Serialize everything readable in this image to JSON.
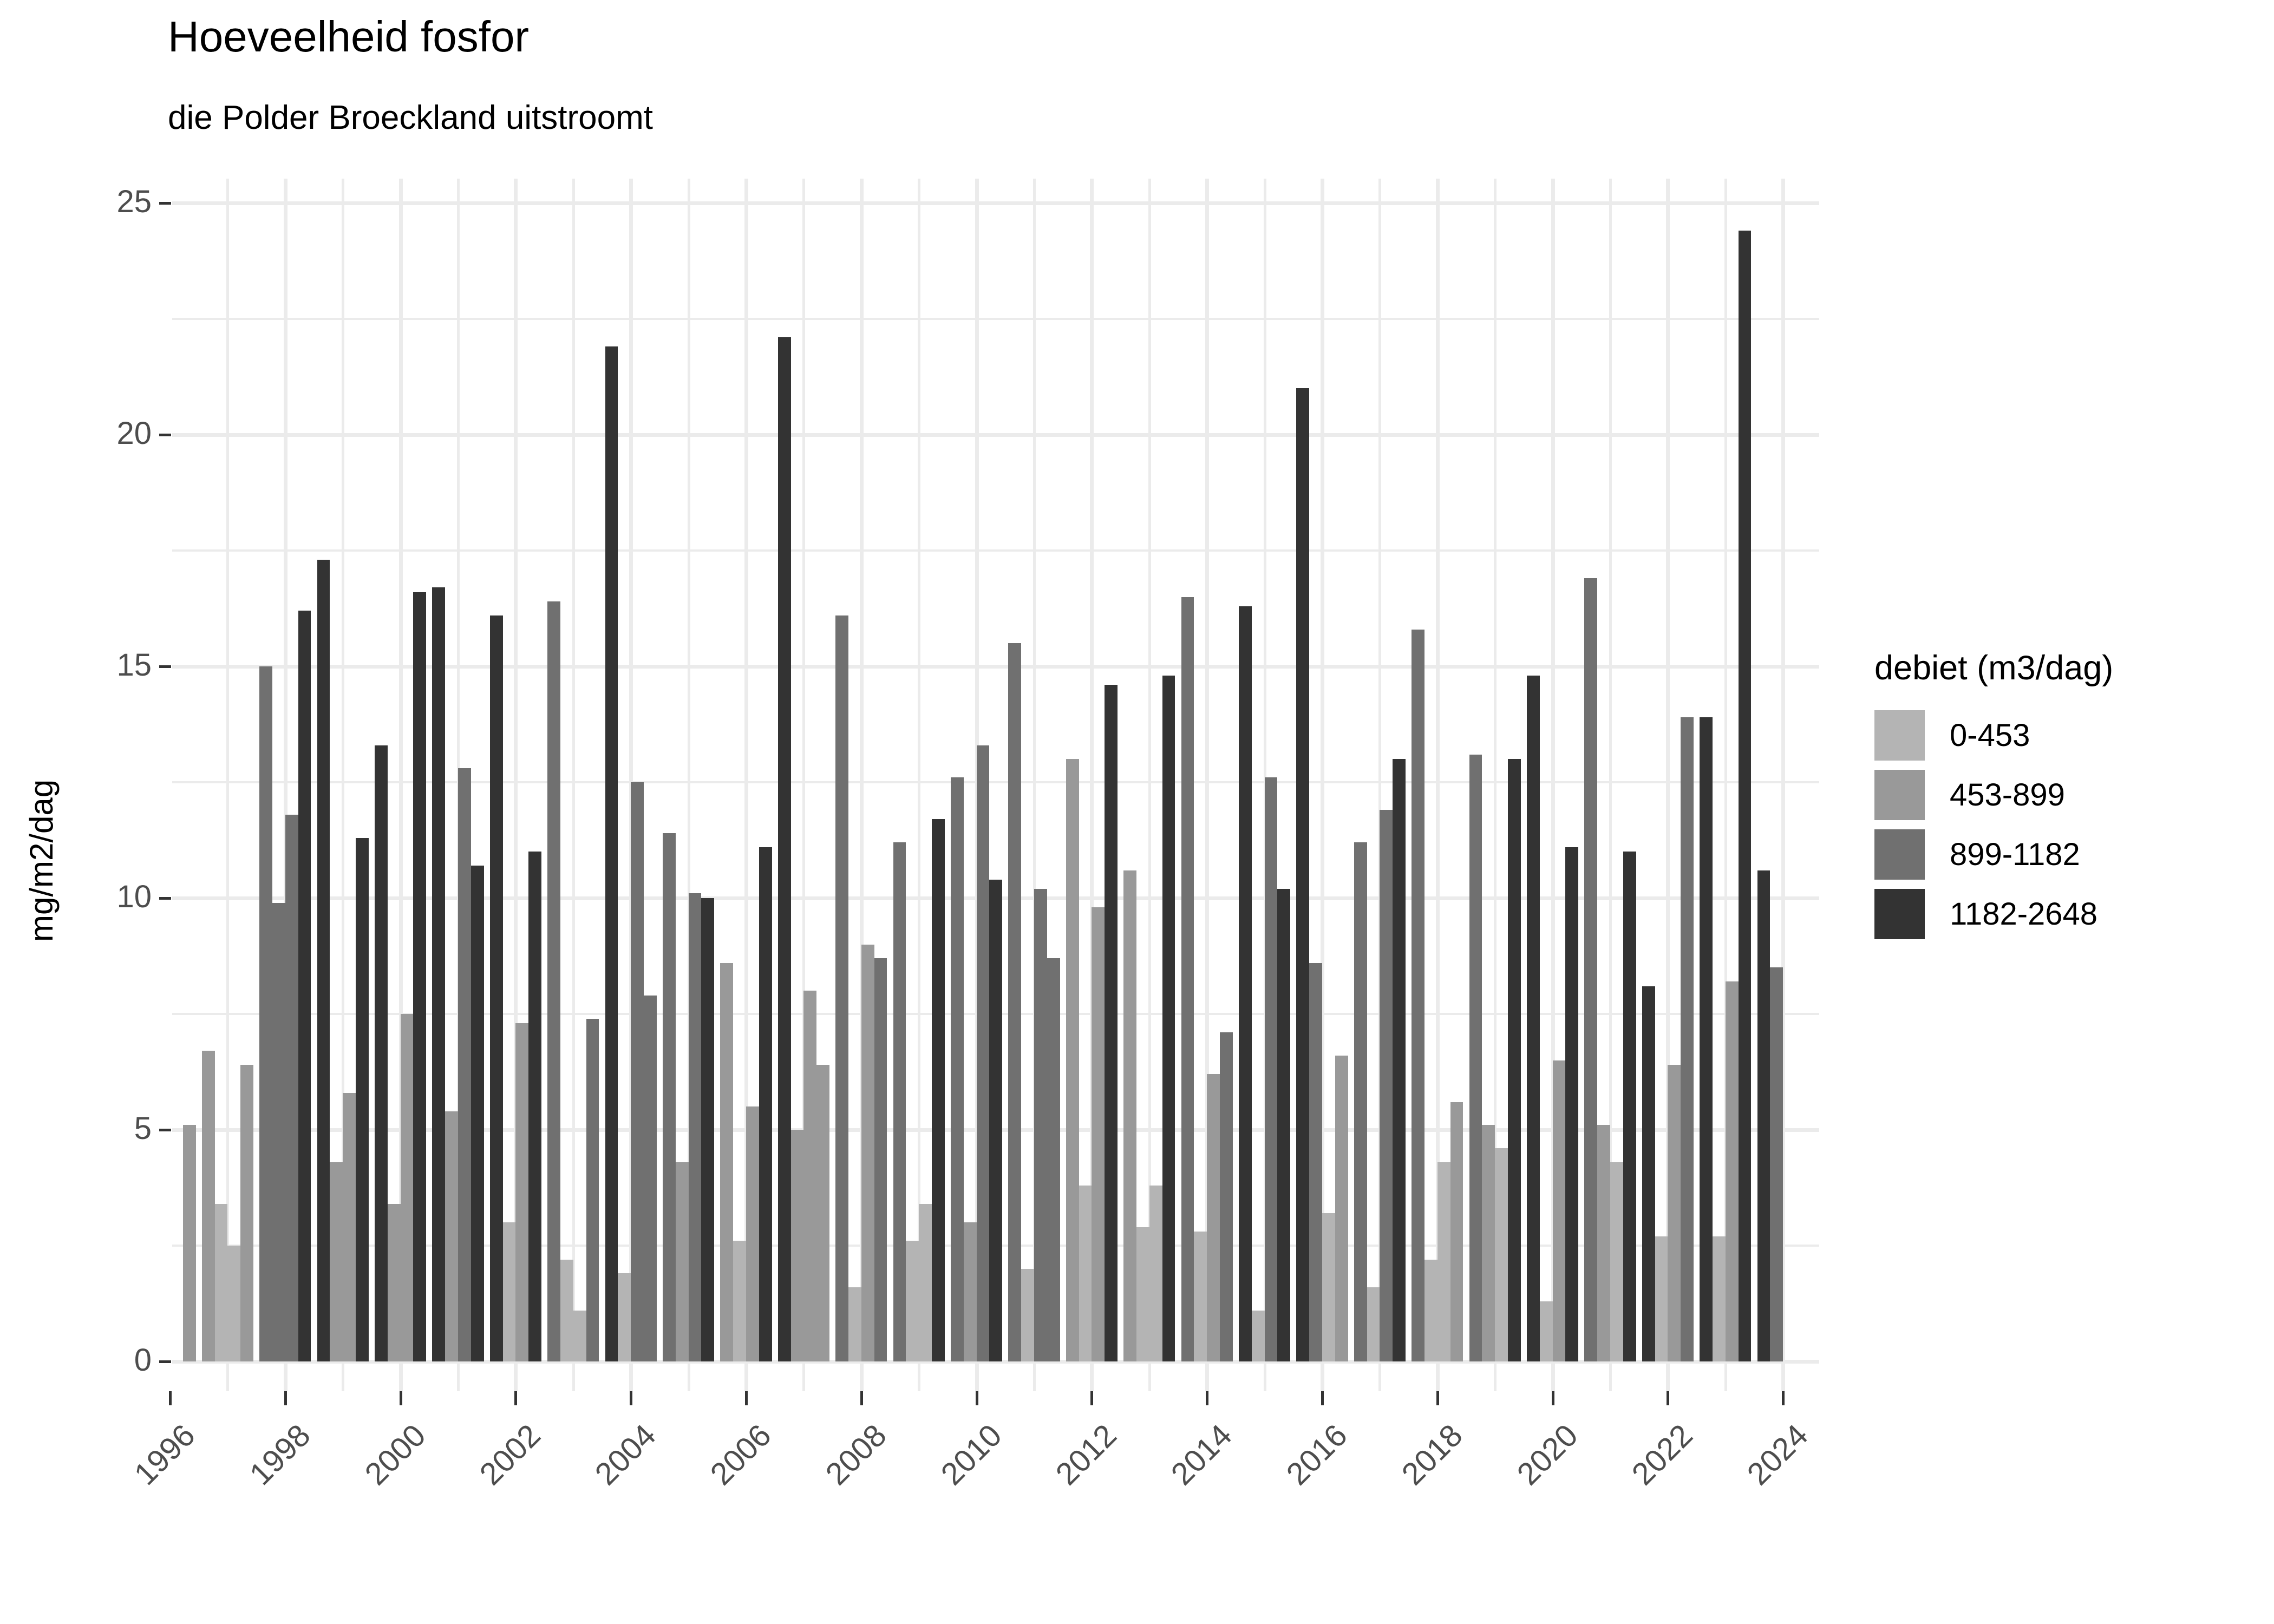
{
  "chart_data": {
    "type": "bar",
    "title": "Hoeveelheid fosfor",
    "subtitle": "die Polder Broeckland uitstroomt",
    "ylabel": "mg/m2/dag",
    "xlabel": "",
    "ylim": [
      0,
      25.5
    ],
    "grid": "on",
    "y_ticks": [
      0,
      5,
      10,
      15,
      20,
      25
    ],
    "x_ticks": [
      1996,
      1998,
      2000,
      2002,
      2004,
      2006,
      2008,
      2010,
      2012,
      2014,
      2016,
      2018,
      2020,
      2022,
      2024
    ],
    "legend": {
      "title": "debiet (m3/dag)",
      "position": "right",
      "items": [
        {
          "label": "0-453",
          "color": "#B4B4B4"
        },
        {
          "label": "453-899",
          "color": "#999999"
        },
        {
          "label": "899-1182",
          "color": "#707070"
        },
        {
          "label": "1182-2648",
          "color": "#333333"
        }
      ]
    },
    "groups": [
      {
        "year": 1996,
        "bars": [
          {
            "q": 4,
            "v": 5.1,
            "c": 1
          }
        ]
      },
      {
        "year": 1997,
        "bars": [
          {
            "q": 1,
            "v": 6.7,
            "c": 1
          },
          {
            "q": 2,
            "v": 3.4,
            "c": 0
          },
          {
            "q": 3,
            "v": 2.5,
            "c": 0
          },
          {
            "q": 4,
            "v": 6.4,
            "c": 1
          }
        ]
      },
      {
        "year": 1998,
        "bars": [
          {
            "q": 1,
            "v": 15.0,
            "c": 2
          },
          {
            "q": 2,
            "v": 9.9,
            "c": 2
          },
          {
            "q": 3,
            "v": 11.8,
            "c": 2
          },
          {
            "q": 4,
            "v": 16.2,
            "c": 3
          }
        ]
      },
      {
        "year": 1999,
        "bars": [
          {
            "q": 1,
            "v": 17.3,
            "c": 3
          },
          {
            "q": 2,
            "v": 4.3,
            "c": 1
          },
          {
            "q": 3,
            "v": 5.8,
            "c": 1
          },
          {
            "q": 4,
            "v": 11.3,
            "c": 3
          }
        ]
      },
      {
        "year": 2000,
        "bars": [
          {
            "q": 1,
            "v": 13.3,
            "c": 3
          },
          {
            "q": 2,
            "v": 3.4,
            "c": 1
          },
          {
            "q": 3,
            "v": 7.5,
            "c": 1
          },
          {
            "q": 4,
            "v": 16.6,
            "c": 3
          }
        ]
      },
      {
        "year": 2001,
        "bars": [
          {
            "q": 1,
            "v": 16.7,
            "c": 3
          },
          {
            "q": 2,
            "v": 5.4,
            "c": 1
          },
          {
            "q": 3,
            "v": 12.8,
            "c": 2
          },
          {
            "q": 4,
            "v": 10.7,
            "c": 3
          }
        ]
      },
      {
        "year": 2002,
        "bars": [
          {
            "q": 1,
            "v": 16.1,
            "c": 3
          },
          {
            "q": 2,
            "v": 3.0,
            "c": 0
          },
          {
            "q": 3,
            "v": 7.3,
            "c": 1
          },
          {
            "q": 4,
            "v": 11.0,
            "c": 3
          }
        ]
      },
      {
        "year": 2003,
        "bars": [
          {
            "q": 1,
            "v": 16.4,
            "c": 2
          },
          {
            "q": 2,
            "v": 2.2,
            "c": 0
          },
          {
            "q": 3,
            "v": 1.1,
            "c": 0
          },
          {
            "q": 4,
            "v": 7.4,
            "c": 2
          }
        ]
      },
      {
        "year": 2004,
        "bars": [
          {
            "q": 1,
            "v": 21.9,
            "c": 3
          },
          {
            "q": 2,
            "v": 1.9,
            "c": 0
          },
          {
            "q": 3,
            "v": 12.5,
            "c": 2
          },
          {
            "q": 4,
            "v": 7.9,
            "c": 2
          }
        ]
      },
      {
        "year": 2005,
        "bars": [
          {
            "q": 1,
            "v": 11.4,
            "c": 2
          },
          {
            "q": 2,
            "v": 4.3,
            "c": 1
          },
          {
            "q": 3,
            "v": 10.1,
            "c": 2
          },
          {
            "q": 4,
            "v": 10.0,
            "c": 3
          }
        ]
      },
      {
        "year": 2006,
        "bars": [
          {
            "q": 1,
            "v": 8.6,
            "c": 1
          },
          {
            "q": 2,
            "v": 2.6,
            "c": 0
          },
          {
            "q": 3,
            "v": 5.5,
            "c": 1
          },
          {
            "q": 4,
            "v": 11.1,
            "c": 3
          }
        ]
      },
      {
        "year": 2007,
        "bars": [
          {
            "q": 1,
            "v": 22.1,
            "c": 3
          },
          {
            "q": 2,
            "v": 5.0,
            "c": 1
          },
          {
            "q": 3,
            "v": 8.0,
            "c": 1
          },
          {
            "q": 4,
            "v": 6.4,
            "c": 1
          }
        ]
      },
      {
        "year": 2008,
        "bars": [
          {
            "q": 1,
            "v": 16.1,
            "c": 2
          },
          {
            "q": 2,
            "v": 1.6,
            "c": 0
          },
          {
            "q": 3,
            "v": 9.0,
            "c": 1
          },
          {
            "q": 4,
            "v": 8.7,
            "c": 2
          }
        ]
      },
      {
        "year": 2009,
        "bars": [
          {
            "q": 1,
            "v": 11.2,
            "c": 2
          },
          {
            "q": 2,
            "v": 2.6,
            "c": 0
          },
          {
            "q": 3,
            "v": 3.4,
            "c": 0
          },
          {
            "q": 4,
            "v": 11.7,
            "c": 3
          }
        ]
      },
      {
        "year": 2010,
        "bars": [
          {
            "q": 1,
            "v": 12.6,
            "c": 2
          },
          {
            "q": 2,
            "v": 3.0,
            "c": 1
          },
          {
            "q": 3,
            "v": 13.3,
            "c": 2
          },
          {
            "q": 4,
            "v": 10.4,
            "c": 3
          }
        ]
      },
      {
        "year": 2011,
        "bars": [
          {
            "q": 1,
            "v": 15.5,
            "c": 2
          },
          {
            "q": 2,
            "v": 2.0,
            "c": 0
          },
          {
            "q": 3,
            "v": 10.2,
            "c": 2
          },
          {
            "q": 4,
            "v": 8.7,
            "c": 2
          }
        ]
      },
      {
        "year": 2012,
        "bars": [
          {
            "q": 1,
            "v": 13.0,
            "c": 1
          },
          {
            "q": 2,
            "v": 3.8,
            "c": 0
          },
          {
            "q": 3,
            "v": 9.8,
            "c": 1
          },
          {
            "q": 4,
            "v": 14.6,
            "c": 3
          }
        ]
      },
      {
        "year": 2013,
        "bars": [
          {
            "q": 1,
            "v": 10.6,
            "c": 1
          },
          {
            "q": 2,
            "v": 2.9,
            "c": 0
          },
          {
            "q": 3,
            "v": 3.8,
            "c": 0
          },
          {
            "q": 4,
            "v": 14.8,
            "c": 3
          }
        ]
      },
      {
        "year": 2014,
        "bars": [
          {
            "q": 1,
            "v": 16.5,
            "c": 2
          },
          {
            "q": 2,
            "v": 2.8,
            "c": 0
          },
          {
            "q": 3,
            "v": 6.2,
            "c": 1
          },
          {
            "q": 4,
            "v": 7.1,
            "c": 2
          }
        ]
      },
      {
        "year": 2015,
        "bars": [
          {
            "q": 1,
            "v": 16.3,
            "c": 3
          },
          {
            "q": 2,
            "v": 1.1,
            "c": 0
          },
          {
            "q": 3,
            "v": 12.6,
            "c": 2
          },
          {
            "q": 4,
            "v": 10.2,
            "c": 3
          }
        ]
      },
      {
        "year": 2016,
        "bars": [
          {
            "q": 1,
            "v": 21.0,
            "c": 3
          },
          {
            "q": 2,
            "v": 8.6,
            "c": 2
          },
          {
            "q": 3,
            "v": 3.2,
            "c": 0
          },
          {
            "q": 4,
            "v": 6.6,
            "c": 1
          }
        ]
      },
      {
        "year": 2017,
        "bars": [
          {
            "q": 1,
            "v": 11.2,
            "c": 2
          },
          {
            "q": 2,
            "v": 1.6,
            "c": 0
          },
          {
            "q": 3,
            "v": 11.9,
            "c": 2
          },
          {
            "q": 4,
            "v": 13.0,
            "c": 3
          }
        ]
      },
      {
        "year": 2018,
        "bars": [
          {
            "q": 1,
            "v": 15.8,
            "c": 2
          },
          {
            "q": 2,
            "v": 2.2,
            "c": 0
          },
          {
            "q": 3,
            "v": 4.3,
            "c": 0
          },
          {
            "q": 4,
            "v": 5.6,
            "c": 1
          }
        ]
      },
      {
        "year": 2019,
        "bars": [
          {
            "q": 1,
            "v": 13.1,
            "c": 2
          },
          {
            "q": 2,
            "v": 5.1,
            "c": 1
          },
          {
            "q": 3,
            "v": 4.6,
            "c": 0
          },
          {
            "q": 4,
            "v": 13.0,
            "c": 3
          }
        ]
      },
      {
        "year": 2020,
        "bars": [
          {
            "q": 1,
            "v": 14.8,
            "c": 3
          },
          {
            "q": 2,
            "v": 1.3,
            "c": 0
          },
          {
            "q": 3,
            "v": 6.5,
            "c": 1
          },
          {
            "q": 4,
            "v": 11.1,
            "c": 3
          }
        ]
      },
      {
        "year": 2021,
        "bars": [
          {
            "q": 1,
            "v": 16.9,
            "c": 2
          },
          {
            "q": 2,
            "v": 5.1,
            "c": 1
          },
          {
            "q": 3,
            "v": 4.3,
            "c": 0
          },
          {
            "q": 4,
            "v": 11.0,
            "c": 3
          }
        ]
      },
      {
        "year": 2022,
        "bars": [
          {
            "q": 1,
            "v": 8.1,
            "c": 3
          },
          {
            "q": 2,
            "v": 2.7,
            "c": 0
          },
          {
            "q": 3,
            "v": 6.4,
            "c": 1
          },
          {
            "q": 4,
            "v": 13.9,
            "c": 2
          }
        ]
      },
      {
        "year": 2023,
        "bars": [
          {
            "q": 1,
            "v": 13.9,
            "c": 3
          },
          {
            "q": 2,
            "v": 2.7,
            "c": 0
          },
          {
            "q": 3,
            "v": 8.2,
            "c": 1
          },
          {
            "q": 4,
            "v": 24.4,
            "c": 3
          }
        ]
      },
      {
        "year": 2024,
        "bars": [
          {
            "q": 1,
            "v": 10.6,
            "c": 3
          },
          {
            "q": 2,
            "v": 8.5,
            "c": 2
          }
        ]
      }
    ]
  }
}
